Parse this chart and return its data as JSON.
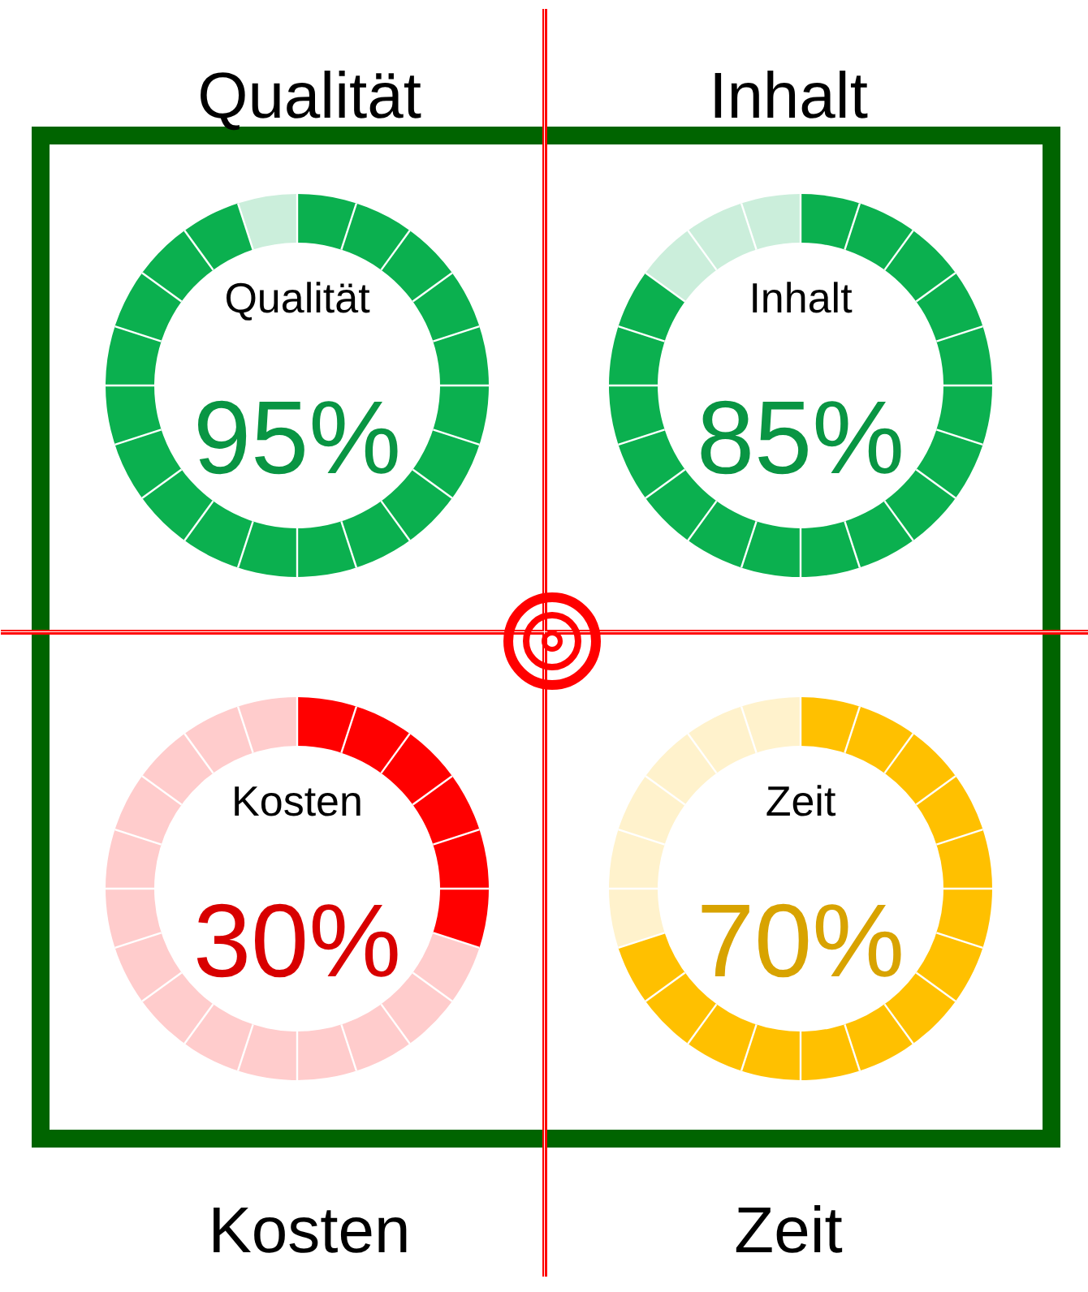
{
  "chart_data": [
    {
      "type": "donut",
      "title": "Qualität",
      "categories": [
        "Qualität",
        null
      ],
      "values": [
        95,
        5
      ],
      "colors": [
        "#0bb04f",
        "#cbeedb"
      ],
      "value_labels": [
        "95%",
        null
      ]
    },
    {
      "type": "donut",
      "title": "Inhalt",
      "categories": [
        "Inhalt",
        null
      ],
      "values": [
        85,
        15
      ],
      "colors": [
        "#0bb04f",
        "#cbeedb"
      ],
      "value_labels": [
        "85%",
        null
      ]
    },
    {
      "type": "donut",
      "title": "Kosten",
      "categories": [
        "Kosten",
        null
      ],
      "values": [
        30,
        70
      ],
      "colors": [
        "#ff0000",
        "#ffcccc"
      ],
      "value_labels": [
        "30%",
        null
      ]
    },
    {
      "type": "donut",
      "title": "Zeit",
      "categories": [
        "Zeit",
        null
      ],
      "values": [
        70,
        30
      ],
      "colors": [
        "#ffc000",
        "#fff2cc"
      ],
      "value_labels": [
        "70%",
        null
      ]
    }
  ]
}
